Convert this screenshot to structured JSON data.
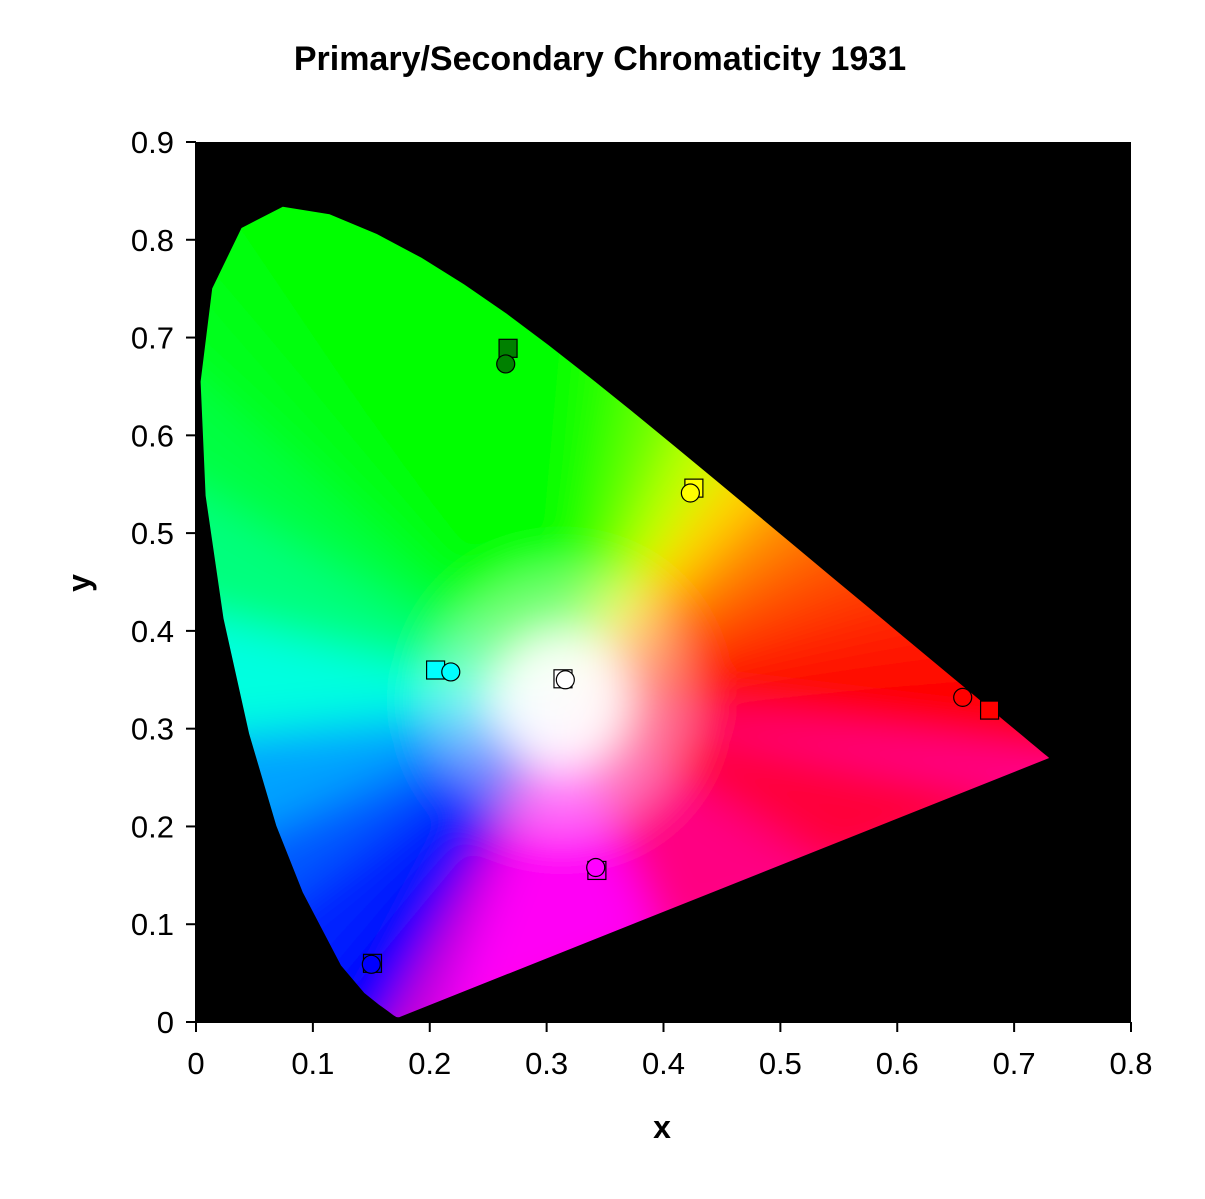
{
  "chart_data": {
    "type": "scatter",
    "title": "Primary/Secondary Chromaticity 1931",
    "xlabel": "x",
    "ylabel": "y",
    "xlim": [
      0,
      0.8
    ],
    "ylim": [
      0,
      0.9
    ],
    "x_ticks": [
      "0",
      "0.1",
      "0.2",
      "0.3",
      "0.4",
      "0.5",
      "0.6",
      "0.7",
      "0.8"
    ],
    "y_ticks": [
      "0",
      "0.1",
      "0.2",
      "0.3",
      "0.4",
      "0.5",
      "0.6",
      "0.7",
      "0.8",
      "0.9"
    ],
    "background": "#000000",
    "grid": false,
    "legend": "none",
    "spectral_locus": [
      [
        0.1741,
        0.005
      ],
      [
        0.1738,
        0.0049
      ],
      [
        0.1733,
        0.0048
      ],
      [
        0.1726,
        0.0048
      ],
      [
        0.1714,
        0.0051
      ],
      [
        0.1689,
        0.0069
      ],
      [
        0.1644,
        0.0109
      ],
      [
        0.1566,
        0.0177
      ],
      [
        0.144,
        0.0297
      ],
      [
        0.1241,
        0.0578
      ],
      [
        0.0913,
        0.1327
      ],
      [
        0.0687,
        0.2007
      ],
      [
        0.0454,
        0.295
      ],
      [
        0.0235,
        0.4127
      ],
      [
        0.0082,
        0.5384
      ],
      [
        0.0039,
        0.6548
      ],
      [
        0.0139,
        0.7502
      ],
      [
        0.0389,
        0.812
      ],
      [
        0.0743,
        0.8338
      ],
      [
        0.1142,
        0.8262
      ],
      [
        0.1547,
        0.8059
      ],
      [
        0.1929,
        0.7816
      ],
      [
        0.2296,
        0.7543
      ],
      [
        0.2658,
        0.7243
      ],
      [
        0.3016,
        0.6923
      ],
      [
        0.3373,
        0.6589
      ],
      [
        0.3731,
        0.6245
      ],
      [
        0.4087,
        0.5896
      ],
      [
        0.4441,
        0.5547
      ],
      [
        0.4788,
        0.5202
      ],
      [
        0.5125,
        0.4866
      ],
      [
        0.5448,
        0.4544
      ],
      [
        0.5752,
        0.4242
      ],
      [
        0.6029,
        0.3965
      ],
      [
        0.627,
        0.3725
      ],
      [
        0.6482,
        0.3514
      ],
      [
        0.6658,
        0.334
      ],
      [
        0.6801,
        0.3197
      ],
      [
        0.6915,
        0.3083
      ],
      [
        0.7006,
        0.2993
      ],
      [
        0.7079,
        0.292
      ],
      [
        0.714,
        0.2859
      ],
      [
        0.719,
        0.2809
      ],
      [
        0.723,
        0.277
      ],
      [
        0.726,
        0.274
      ],
      [
        0.7283,
        0.2717
      ],
      [
        0.73,
        0.27
      ]
    ],
    "series": [
      {
        "marker": "circle",
        "points": [
          {
            "x": 0.265,
            "y": 0.673,
            "color": "#008000"
          },
          {
            "x": 0.423,
            "y": 0.541,
            "color": "#ffff00"
          },
          {
            "x": 0.218,
            "y": 0.358,
            "color": "#00ffff"
          },
          {
            "x": 0.316,
            "y": 0.35,
            "color": "#ffffff"
          },
          {
            "x": 0.656,
            "y": 0.332,
            "color": "#ff0000"
          },
          {
            "x": 0.342,
            "y": 0.158,
            "color": "#ff00ff"
          },
          {
            "x": 0.15,
            "y": 0.059,
            "color": "#0000ff"
          }
        ]
      },
      {
        "marker": "square",
        "points": [
          {
            "x": 0.267,
            "y": 0.689,
            "color": "#008000"
          },
          {
            "x": 0.426,
            "y": 0.546,
            "color": "#ffff00"
          },
          {
            "x": 0.205,
            "y": 0.36,
            "color": "#00ffff"
          },
          {
            "x": 0.314,
            "y": 0.351,
            "color": "#ffffff"
          },
          {
            "x": 0.679,
            "y": 0.319,
            "color": "#ff0000"
          },
          {
            "x": 0.343,
            "y": 0.155,
            "color": "#ff00ff"
          },
          {
            "x": 0.151,
            "y": 0.06,
            "color": "#0000ff"
          }
        ]
      }
    ]
  }
}
